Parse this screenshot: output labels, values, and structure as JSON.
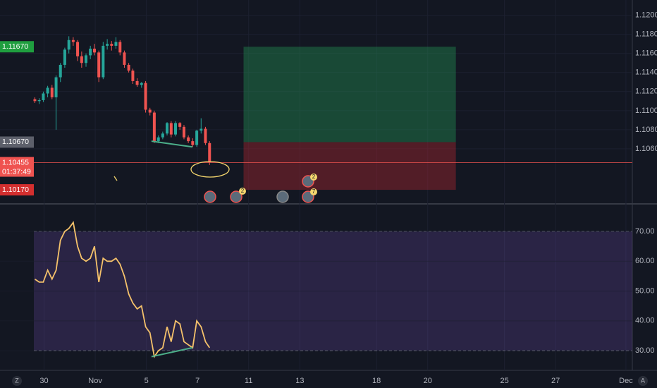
{
  "chart_data": [
    {
      "type": "candlestick",
      "x": [
        -0.36,
        -0.19,
        -0.03,
        0.14,
        0.31,
        0.47,
        0.64,
        0.81,
        0.97,
        1.14,
        1.31,
        1.47,
        1.64,
        1.81,
        1.97,
        2.14,
        2.31,
        2.47,
        2.64,
        2.81,
        2.97,
        3.14,
        3.31,
        3.47,
        3.64,
        3.81,
        3.97,
        4.14,
        4.31,
        4.47,
        4.64,
        4.81,
        4.97,
        5.14,
        5.31,
        5.47,
        5.64,
        5.81,
        5.97,
        6.14,
        6.31,
        6.47
      ],
      "open": [
        1.1112,
        1.111,
        1.1111,
        1.1118,
        1.1124,
        1.1114,
        1.1135,
        1.1148,
        1.1164,
        1.1174,
        1.1172,
        1.1157,
        1.115,
        1.1158,
        1.1165,
        1.1161,
        1.1135,
        1.1168,
        1.117,
        1.1168,
        1.1172,
        1.1161,
        1.1148,
        1.1142,
        1.1131,
        1.1127,
        1.1129,
        1.1101,
        1.1098,
        1.1068,
        1.1072,
        1.1076,
        1.1087,
        1.1075,
        1.1087,
        1.1083,
        1.1072,
        1.1068,
        1.1064,
        1.1079,
        1.1081,
        1.1066
      ],
      "high": [
        1.1114,
        1.1113,
        1.112,
        1.1126,
        1.1127,
        1.1137,
        1.115,
        1.1166,
        1.1178,
        1.1177,
        1.1174,
        1.1162,
        1.116,
        1.1168,
        1.117,
        1.1163,
        1.1172,
        1.1175,
        1.1173,
        1.1177,
        1.1174,
        1.1163,
        1.115,
        1.1144,
        1.1134,
        1.113,
        1.1131,
        1.1103,
        1.11,
        1.1074,
        1.1078,
        1.1088,
        1.1089,
        1.1089,
        1.1088,
        1.1085,
        1.1074,
        1.1071,
        1.108,
        1.1092,
        1.1083,
        1.1068
      ],
      "low": [
        1.1108,
        1.1107,
        1.1109,
        1.1114,
        1.1112,
        1.108,
        1.113,
        1.1145,
        1.116,
        1.1168,
        1.1152,
        1.1145,
        1.1146,
        1.1154,
        1.1158,
        1.113,
        1.1133,
        1.1164,
        1.1163,
        1.1165,
        1.1158,
        1.1145,
        1.114,
        1.1128,
        1.1125,
        1.1124,
        1.1098,
        1.1095,
        1.1066,
        1.1066,
        1.107,
        1.1074,
        1.1072,
        1.1073,
        1.108,
        1.107,
        1.1066,
        1.1062,
        1.1062,
        1.1076,
        1.1064,
        1.1043
      ],
      "close": [
        1.111,
        1.1111,
        1.1118,
        1.1124,
        1.1114,
        1.1135,
        1.1148,
        1.1164,
        1.1174,
        1.1172,
        1.1157,
        1.115,
        1.1158,
        1.1165,
        1.1161,
        1.1135,
        1.1168,
        1.117,
        1.1168,
        1.1172,
        1.1161,
        1.1148,
        1.1142,
        1.1131,
        1.1127,
        1.1129,
        1.1101,
        1.1098,
        1.1068,
        1.1072,
        1.1076,
        1.1087,
        1.1075,
        1.1087,
        1.1083,
        1.1072,
        1.1068,
        1.1064,
        1.1079,
        1.1081,
        1.1066,
        1.1046
      ],
      "up_color": "#26a69a",
      "down_color": "#ef5350",
      "xlim": [
        -0.4,
        23.0
      ],
      "ylim": [
        1.1003,
        1.1216
      ],
      "yticks": [
        {
          "value": 1.12,
          "label": "1.12000"
        },
        {
          "value": 1.118,
          "label": "1.11800"
        },
        {
          "value": 1.116,
          "label": "1.11600"
        },
        {
          "value": 1.114,
          "label": "1.11400"
        },
        {
          "value": 1.112,
          "label": "1.11200"
        },
        {
          "value": 1.11,
          "label": "1.11000"
        },
        {
          "value": 1.108,
          "label": "1.10800"
        },
        {
          "value": 1.106,
          "label": "1.10600"
        }
      ],
      "grid": true,
      "position": {
        "x": [
          7.8,
          16.1
        ],
        "target": {
          "value": 1.1167,
          "label": "1.11670"
        },
        "entry": {
          "value": 1.1067,
          "label": "1.10670"
        },
        "stop": {
          "value": 1.1017,
          "label": "1.10170"
        }
      },
      "last_price": {
        "value": 1.10455,
        "label": "1.10455"
      },
      "countdown": "01:37:49",
      "trendline": {
        "x": [
          4.2,
          5.8
        ],
        "y": [
          1.1068,
          1.1062
        ]
      },
      "event_badges": [
        "2",
        "2",
        "7"
      ]
    },
    {
      "type": "line",
      "x": [
        -0.36,
        -0.19,
        -0.03,
        0.14,
        0.31,
        0.47,
        0.64,
        0.81,
        0.97,
        1.14,
        1.31,
        1.47,
        1.64,
        1.81,
        1.97,
        2.14,
        2.31,
        2.47,
        2.64,
        2.81,
        2.97,
        3.14,
        3.31,
        3.47,
        3.64,
        3.81,
        3.97,
        4.14,
        4.31,
        4.47,
        4.64,
        4.81,
        4.97,
        5.14,
        5.31,
        5.47,
        5.64,
        5.81,
        5.97,
        6.14,
        6.31,
        6.47
      ],
      "values": [
        54,
        53,
        53,
        57,
        54,
        57,
        67,
        70,
        71,
        73,
        65,
        61,
        60,
        61,
        65,
        53,
        61,
        60,
        60,
        61,
        59,
        55,
        49,
        46,
        44,
        45,
        38,
        36,
        28,
        30,
        31,
        38,
        33,
        40,
        39,
        33,
        32,
        31,
        40,
        38,
        33,
        31
      ],
      "color": "#f5c26b",
      "xlim": [
        -0.4,
        23.0
      ],
      "ylim": [
        23.4,
        79.0
      ],
      "yticks": [
        {
          "value": 70,
          "label": "70.00"
        },
        {
          "value": 60,
          "label": "60.00"
        },
        {
          "value": 50,
          "label": "50.00"
        },
        {
          "value": 40,
          "label": "40.00"
        },
        {
          "value": 30,
          "label": "30.00"
        }
      ],
      "band": [
        30,
        70
      ],
      "xticks": [
        {
          "value": 0,
          "label": "30"
        },
        {
          "value": 2,
          "label": "Nov"
        },
        {
          "value": 4,
          "label": "5"
        },
        {
          "value": 6,
          "label": "7"
        },
        {
          "value": 8,
          "label": "11"
        },
        {
          "value": 10,
          "label": "13"
        },
        {
          "value": 13,
          "label": "18"
        },
        {
          "value": 15,
          "label": "20"
        },
        {
          "value": 18,
          "label": "25"
        },
        {
          "value": 20,
          "label": "27"
        },
        {
          "value": 22.75,
          "label": "Dec"
        }
      ],
      "trendline": {
        "x": [
          4.2,
          5.8
        ],
        "y": [
          28,
          31
        ]
      }
    }
  ],
  "toolbar": {
    "left": "Z",
    "right": "A"
  }
}
